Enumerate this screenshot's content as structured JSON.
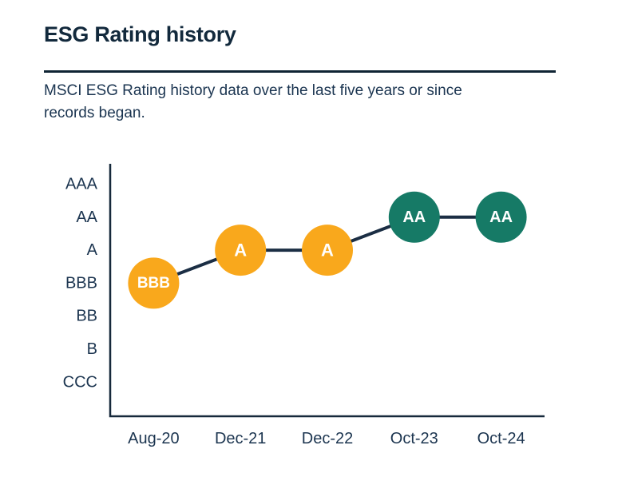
{
  "header": {
    "title": "ESG Rating history",
    "subtitle": "MSCI ESG Rating history data over the last five years or since\nrecords began."
  },
  "chart_data": {
    "type": "line",
    "title": "ESG Rating history",
    "subtitle": "MSCI ESG Rating history data over the last five years or since records began.",
    "x_categories": [
      "Aug-20",
      "Dec-21",
      "Dec-22",
      "Oct-23",
      "Oct-24"
    ],
    "y_categories_top_to_bottom": [
      "AAA",
      "AA",
      "A",
      "BBB",
      "BB",
      "B",
      "CCC"
    ],
    "points": [
      {
        "x": "Aug-20",
        "rating": "BBB",
        "color": "amber"
      },
      {
        "x": "Dec-21",
        "rating": "A",
        "color": "amber"
      },
      {
        "x": "Dec-22",
        "rating": "A",
        "color": "amber"
      },
      {
        "x": "Oct-23",
        "rating": "AA",
        "color": "teal"
      },
      {
        "x": "Oct-24",
        "rating": "AA",
        "color": "teal"
      }
    ],
    "colors": {
      "amber": "#F9A81C",
      "teal": "#167A66",
      "line": "#1B2E44",
      "axis": "#16293B",
      "label": "#1C3550",
      "marker_text": "#FFFFFF"
    },
    "grid": false,
    "legend": false,
    "axis_ranges": {
      "y": "CCC (bottom) to AAA (top), categorical rating scale",
      "x": "Aug-20 to Oct-24, categorical dates"
    }
  }
}
